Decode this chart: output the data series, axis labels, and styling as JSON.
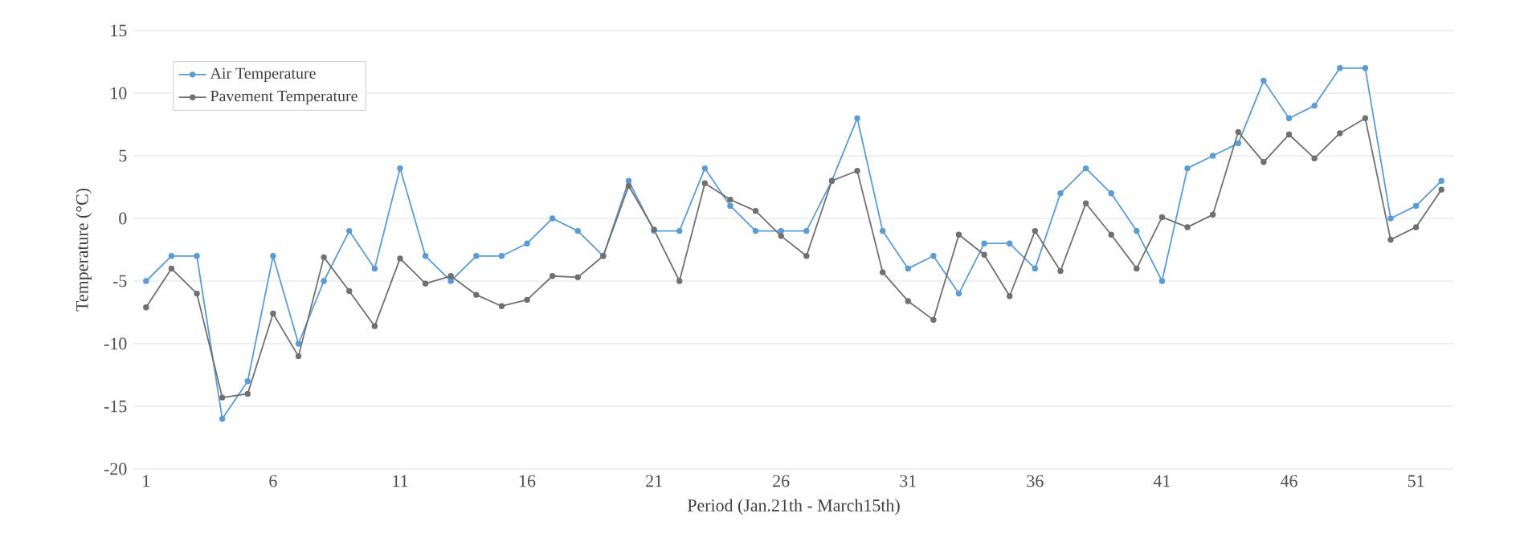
{
  "chart_data": {
    "type": "line",
    "xlabel": "Period (Jan.21th - March15th)",
    "ylabel": "Temperature (°C)",
    "categories": [
      "1",
      null,
      null,
      null,
      null,
      "6",
      null,
      null,
      null,
      null,
      "11",
      null,
      null,
      null,
      null,
      "16",
      null,
      null,
      null,
      null,
      "21",
      null,
      null,
      null,
      null,
      "26",
      null,
      null,
      null,
      null,
      "31",
      null,
      null,
      null,
      null,
      "36",
      null,
      null,
      null,
      null,
      "41",
      null,
      null,
      null,
      null,
      "46",
      null,
      null,
      null,
      null,
      "51",
      null
    ],
    "series": [
      {
        "name": "Air Temperature",
        "color": "#5b9bd5",
        "values": [
          -5,
          -3,
          -3,
          -16,
          -13,
          -3,
          -10,
          -5,
          -1,
          -4,
          4,
          -3,
          -5,
          -3,
          -3,
          -2,
          0,
          -1,
          -3,
          3,
          -1,
          -1,
          4,
          1,
          -1,
          -1,
          -1,
          3,
          8,
          -1,
          -4,
          -3,
          -6,
          -2,
          -2,
          -4,
          2,
          4,
          2,
          -1,
          -5,
          4,
          5,
          6,
          11,
          8,
          9,
          12,
          12,
          0,
          1,
          3
        ]
      },
      {
        "name": "Pavement Temperature",
        "color": "#707070",
        "values": [
          -7.1,
          -4.0,
          -6.0,
          -14.3,
          -14.0,
          -7.6,
          -11.0,
          -3.1,
          -5.8,
          -8.6,
          -3.2,
          -5.2,
          -4.6,
          -6.1,
          -7.0,
          -6.5,
          -4.6,
          -4.7,
          -3.0,
          2.6,
          -0.9,
          -5.0,
          2.8,
          1.5,
          0.6,
          -1.4,
          -3.0,
          3.0,
          3.8,
          -4.3,
          -6.6,
          -8.1,
          -1.3,
          -2.9,
          -6.2,
          -1.0,
          -4.2,
          1.2,
          -1.3,
          -4.0,
          0.1,
          -0.7,
          0.3,
          6.9,
          4.5,
          6.7,
          4.8,
          6.8,
          8.0,
          -1.7,
          -0.7,
          2.3
        ]
      }
    ],
    "ylim": [
      -20,
      15
    ],
    "yticks": [
      -20,
      -15,
      -10,
      -5,
      0,
      5,
      10,
      15
    ],
    "grid": "y",
    "legend": "top left",
    "marker": "circle",
    "line_style": "solid"
  }
}
